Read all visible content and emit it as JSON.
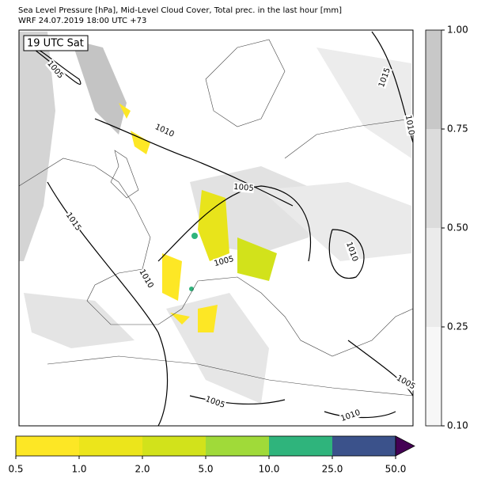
{
  "header": {
    "line1": "Sea Level Pressure [hPa], Mid-Level Cloud Cover, Total prec. in the last hour [mm]",
    "line2": "WRF 24.07.2019 18:00 UTC +73"
  },
  "map": {
    "time_label": "19 UTC Sat",
    "isobar_labels": [
      "1005",
      "1015",
      "1010",
      "1010",
      "1005",
      "1015",
      "1010",
      "1005",
      "1010",
      "1005",
      "1005",
      "1010"
    ]
  },
  "cloud_colorbar": {
    "colors": [
      "#f7f7f7",
      "#ebebeb",
      "#dcdcdc",
      "#c8c8c8"
    ],
    "ticks": [
      {
        "value": 0.1,
        "label": "0.10"
      },
      {
        "value": 0.25,
        "label": "0.25"
      },
      {
        "value": 0.5,
        "label": "0.50"
      },
      {
        "value": 0.75,
        "label": "0.75"
      },
      {
        "value": 1,
        "label": "1.00"
      }
    ]
  },
  "precip_colorbar": {
    "colors": [
      "#fde725",
      "#ece51b",
      "#d2e21b",
      "#a0da39",
      "#2fb47c",
      "#3b528b"
    ],
    "extend_color": "#440154",
    "ticks": [
      0.5,
      {
        "value": 1,
        "label": "1.0"
      },
      {
        "value": 2,
        "label": "2.0"
      },
      {
        "value": 5,
        "label": "5.0"
      },
      {
        "value": 10,
        "label": "10.0"
      },
      {
        "value": 25,
        "label": "25.0"
      },
      {
        "value": 50,
        "label": "50.0"
      }
    ]
  }
}
